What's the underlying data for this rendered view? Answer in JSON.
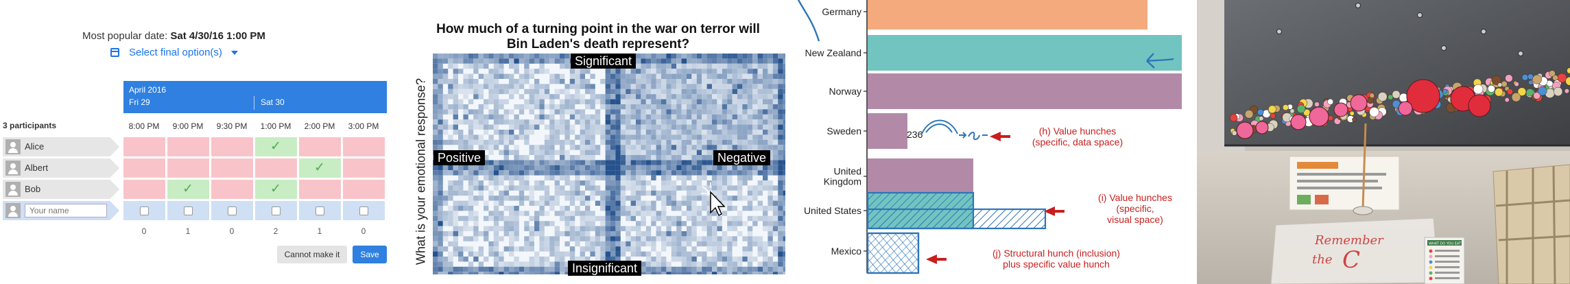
{
  "scheduler": {
    "popular_label": "Most popular date:",
    "popular_value": "Sat 4/30/16 1:00 PM",
    "select_label": "Select final option(s)",
    "month": "April 2016",
    "day1": "Fri 29",
    "day2": "Sat 30",
    "participants_label": "3 participants",
    "times": [
      "8:00 PM",
      "9:00 PM",
      "9:30 PM",
      "1:00 PM",
      "2:00 PM",
      "3:00 PM"
    ],
    "rows": [
      {
        "name": "Alice",
        "votes": [
          false,
          false,
          false,
          true,
          false,
          false
        ]
      },
      {
        "name": "Albert",
        "votes": [
          false,
          false,
          false,
          false,
          true,
          false
        ]
      },
      {
        "name": "Bob",
        "votes": [
          false,
          true,
          false,
          true,
          false,
          false
        ]
      }
    ],
    "name_placeholder": "Your name",
    "counts": [
      "0",
      "1",
      "0",
      "2",
      "1",
      "0"
    ],
    "cannot_label": "Cannot make it",
    "save_label": "Save",
    "colors": {
      "accent": "#2f80e0",
      "no": "#f8c4c9",
      "yes": "#c8ecc3",
      "check": "#4caf50"
    }
  },
  "heatmap": {
    "title_line1": "How much of a turning point in the war on terror will",
    "title_line2": "Bin Laden's death represent?",
    "ylabel": "What is your emotional response?",
    "top_label": "Significant",
    "bottom_label": "Insignificant",
    "left_label": "Positive",
    "right_label": "Negative",
    "cursor_icon": "pointer-cursor-icon"
  },
  "chart_data": {
    "type": "bar",
    "orientation": "horizontal",
    "categories": [
      "Germany",
      "New Zealand",
      "Norway",
      "Sweden",
      "United Kingdom",
      "United States",
      "Mexico"
    ],
    "category_lines": [
      [
        "Germany"
      ],
      [
        "New Zealand"
      ],
      [
        "Norway"
      ],
      [
        "Sweden"
      ],
      [
        "United",
        "Kingdom"
      ],
      [
        "United States"
      ],
      [
        "Mexico"
      ]
    ],
    "values": [
      409,
      459,
      459,
      59,
      155,
      155,
      null
    ],
    "bar_colors": [
      "#f4aa7c",
      "#72c4c0",
      "#b28aa8",
      "#b28aa8",
      "#b28aa8",
      "#72c4c0",
      null
    ],
    "xlim": [
      0,
      460
    ],
    "grid": false,
    "legend": "none",
    "hunches": [
      {
        "category": "Sweden",
        "value_label": "236",
        "sketch": "236 → 5%",
        "annotation_lines": [
          "(h) Value hunches",
          "(specific, data space)"
        ]
      },
      {
        "category": "United States",
        "sketch_value": 260,
        "annotation_lines": [
          "(i) Value hunches",
          "(specific,",
          "visual space)"
        ]
      },
      {
        "category": "Mexico",
        "sketch_value": 75,
        "annotation_lines": [
          "(j) Structural hunch (inclusion)",
          "plus specific value hunch"
        ]
      }
    ],
    "annotation_color": "#c81e1e",
    "sketch_color": "#2d74b8"
  },
  "photo": {
    "note_line1": "Remember",
    "note_line2": "the",
    "note_symbol": "C",
    "card_title": "WHAT DO YOU EAT?"
  }
}
